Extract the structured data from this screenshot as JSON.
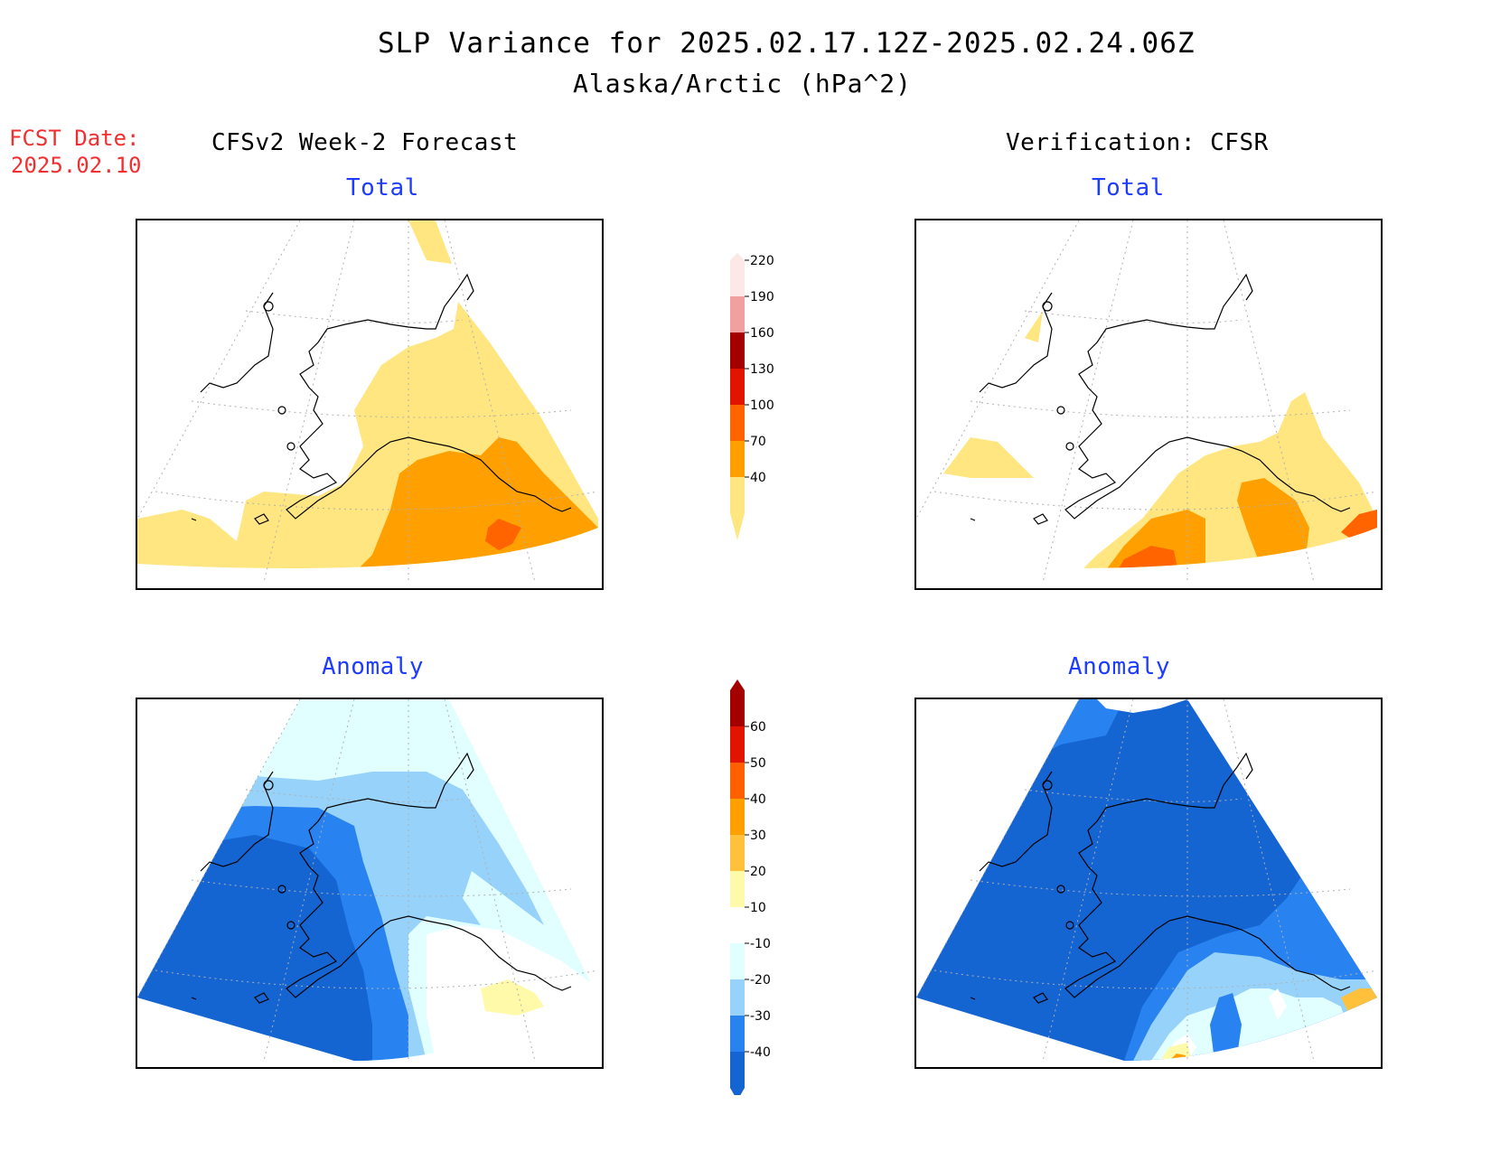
{
  "header": {
    "title": "SLP Variance for 2025.02.17.12Z-2025.02.24.06Z",
    "subtitle": "Alaska/Arctic (hPa^2)"
  },
  "fcst_date": {
    "label": "FCST Date:",
    "value": "2025.02.10"
  },
  "columns": {
    "forecast": "CFSv2 Week-2 Forecast",
    "verification": "Verification: CFSR"
  },
  "panels": {
    "total_label": "Total",
    "anomaly_label": "Anomaly"
  },
  "colorbars": {
    "total": {
      "levels": [
        "40",
        "70",
        "100",
        "130",
        "160",
        "190",
        "220"
      ],
      "colors": [
        "#ffe680",
        "#ffa000",
        "#ff6400",
        "#e11400",
        "#a50000",
        "#f0a0a0",
        "#fde8e8"
      ]
    },
    "anomaly": {
      "levels": [
        "-40",
        "-30",
        "-20",
        "-10",
        "10",
        "20",
        "30",
        "40",
        "50",
        "60"
      ],
      "colors": [
        "#1464d2",
        "#2882f0",
        "#96d2fa",
        "#e1ffff",
        "#ffffff",
        "#fffaaa",
        "#ffc03c",
        "#ffa000",
        "#ff6000",
        "#e11400",
        "#a50000"
      ]
    }
  },
  "palette": {
    "land_outline": "#000000",
    "grid": "#b0b0b0"
  }
}
